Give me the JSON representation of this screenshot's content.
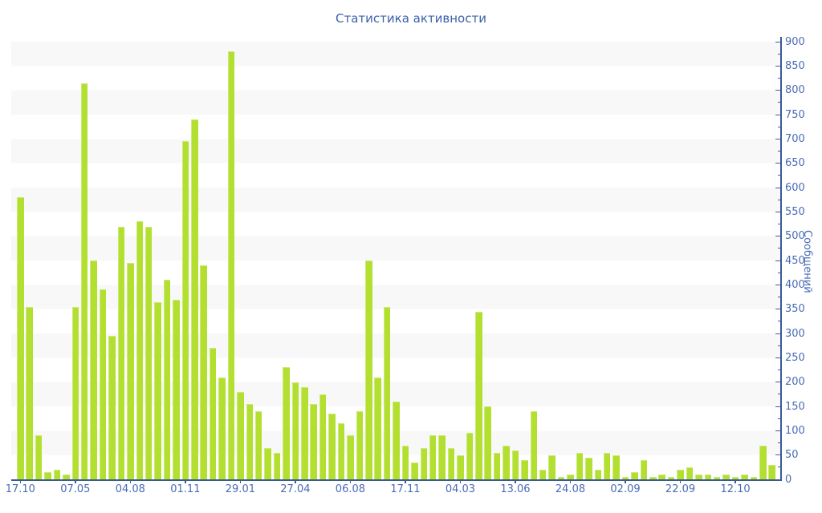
{
  "title": "Статистика активности",
  "chart_data": {
    "type": "bar",
    "title": "Статистика активности",
    "xlabel": "",
    "ylabel": "Сообщений",
    "ylim": [
      0,
      900
    ],
    "y_tick_step": 50,
    "y_minor_tick_step": 25,
    "legend_position": "none",
    "grid": "horizontal striped bands every 50 units, alternating #f8f8f8 / #ffffff",
    "bar_color": "#b3df30",
    "axis_color": "#3a5a96",
    "tick_label_color": "#4a6cb4",
    "title_color": "#3c61a8",
    "x_tick_labels": [
      "17.10",
      "07.05",
      "04.08",
      "01.11",
      "29.01",
      "27.04",
      "06.08",
      "17.11",
      "04.03",
      "13.06",
      "24.08",
      "02.09",
      "22.09",
      "12.10"
    ],
    "x_tick_every_n_bars": 6,
    "values": [
      580,
      355,
      90,
      15,
      20,
      10,
      355,
      815,
      450,
      390,
      295,
      520,
      445,
      530,
      520,
      365,
      410,
      370,
      695,
      740,
      440,
      270,
      210,
      880,
      180,
      155,
      140,
      65,
      55,
      230,
      200,
      190,
      155,
      175,
      135,
      115,
      90,
      140,
      450,
      210,
      355,
      160,
      70,
      35,
      65,
      90,
      90,
      65,
      50,
      95,
      345,
      150,
      55,
      70,
      60,
      40,
      140,
      20,
      50,
      5,
      10,
      55,
      45,
      20,
      55,
      50,
      5,
      15,
      40,
      5,
      10,
      5,
      20,
      25,
      10,
      10,
      5,
      10,
      5,
      10,
      5,
      70,
      30
    ]
  }
}
